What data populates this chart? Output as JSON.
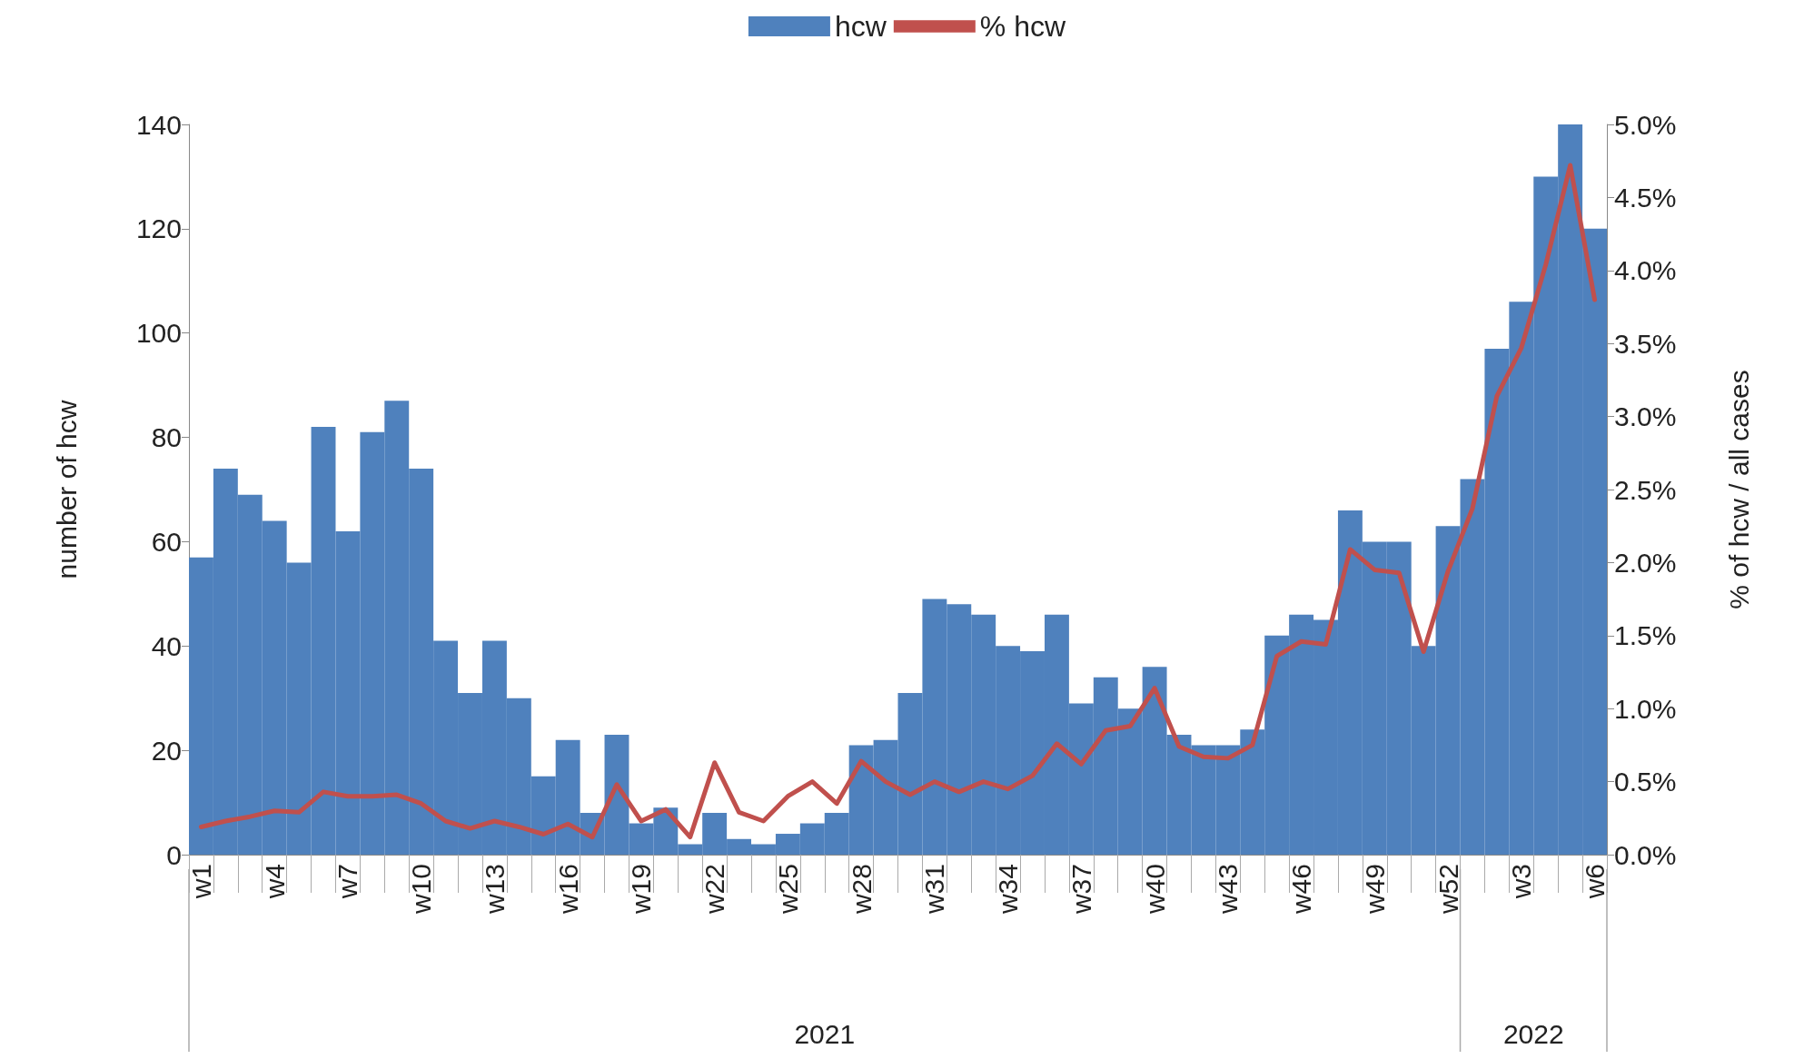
{
  "chart_data": {
    "type": "bar",
    "ylabel": "number of hcw",
    "y2label": "% of hcw / all cases",
    "categories": [
      "w1",
      null,
      null,
      "w4",
      null,
      null,
      "w7",
      null,
      null,
      "w10",
      null,
      null,
      "w13",
      null,
      null,
      "w16",
      null,
      null,
      "w19",
      null,
      null,
      "w22",
      null,
      null,
      "w25",
      null,
      null,
      "w28",
      null,
      null,
      "w31",
      null,
      null,
      "w34",
      null,
      null,
      "w37",
      null,
      null,
      "w40",
      null,
      null,
      "w43",
      null,
      null,
      "w46",
      null,
      null,
      "w49",
      null,
      null,
      "w52",
      null,
      null,
      "w3",
      null,
      null,
      "w6"
    ],
    "series": [
      {
        "name": "hcw",
        "color": "#4f81bd",
        "values": [
          57,
          74,
          69,
          64,
          56,
          82,
          62,
          81,
          87,
          74,
          41,
          31,
          41,
          30,
          15,
          22,
          8,
          23,
          6,
          9,
          2,
          8,
          3,
          2,
          4,
          6,
          8,
          21,
          22,
          31,
          49,
          48,
          46,
          40,
          39,
          46,
          29,
          34,
          28,
          36,
          23,
          21,
          21,
          24,
          42,
          46,
          45,
          66,
          60,
          60,
          40,
          63,
          72,
          97,
          106,
          130,
          140,
          120
        ]
      },
      {
        "name": "% hcw",
        "type": "line",
        "axis": "y2",
        "color": "#c0504d",
        "values": [
          0.19,
          0.23,
          0.26,
          0.3,
          0.29,
          0.43,
          0.4,
          0.4,
          0.41,
          0.35,
          0.23,
          0.18,
          0.23,
          0.19,
          0.14,
          0.21,
          0.12,
          0.48,
          0.23,
          0.31,
          0.12,
          0.63,
          0.29,
          0.23,
          0.4,
          0.5,
          0.35,
          0.64,
          0.5,
          0.41,
          0.5,
          0.43,
          0.5,
          0.45,
          0.54,
          0.76,
          0.62,
          0.85,
          0.88,
          1.14,
          0.74,
          0.67,
          0.66,
          0.75,
          1.36,
          1.46,
          1.44,
          2.09,
          1.95,
          1.93,
          1.39,
          1.94,
          2.37,
          3.14,
          3.47,
          4.04,
          4.72,
          3.8
        ]
      }
    ],
    "ylim": [
      0,
      140
    ],
    "yticks": [
      0,
      20,
      40,
      60,
      80,
      100,
      120,
      140
    ],
    "y2lim": [
      0,
      5
    ],
    "y2ticks": [
      {
        "value": 0,
        "label": "0.0%"
      },
      {
        "value": 0.5,
        "label": "0.5%"
      },
      {
        "value": 1,
        "label": "1.0%"
      },
      {
        "value": 1.5,
        "label": "1.5%"
      },
      {
        "value": 2,
        "label": "2.0%"
      },
      {
        "value": 2.5,
        "label": "2.5%"
      },
      {
        "value": 3,
        "label": "3.0%"
      },
      {
        "value": 3.5,
        "label": "3.5%"
      },
      {
        "value": 4,
        "label": "4.0%"
      },
      {
        "value": 4.5,
        "label": "4.5%"
      },
      {
        "value": 5,
        "label": "5.0%"
      }
    ],
    "annotations": [
      "2021",
      "2022"
    ],
    "legend": "top",
    "grid": false,
    "marker": "none",
    "line_style": "solid"
  }
}
